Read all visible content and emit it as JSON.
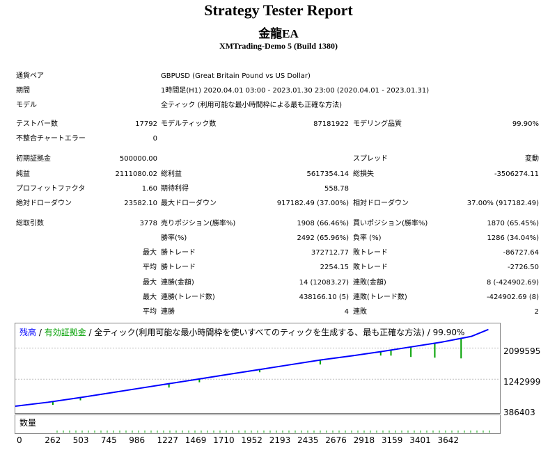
{
  "title": "Strategy Tester Report",
  "ea_name": "金龍EA",
  "server": "XMTrading-Demo 5 (Build 1380)",
  "info": {
    "symbol_label": "通貨ペア",
    "symbol_value": "GBPUSD (Great Britain Pound vs US Dollar)",
    "period_label": "期間",
    "period_value": "1時間足(H1) 2020.04.01 03:00 - 2023.01.30 23:00 (2020.04.01 - 2023.01.31)",
    "model_label": "モデル",
    "model_value": "全ティック (利用可能な最小時間枠による最も正確な方法)"
  },
  "stats": {
    "bars_label": "テストバー数",
    "bars_value": "17792",
    "ticks_label": "モデルティック数",
    "ticks_value": "87181922",
    "quality_label": "モデリング品質",
    "quality_value": "99.90%",
    "mismatch_label": "不整合チャートエラー",
    "mismatch_value": "0",
    "deposit_label": "初期証拠金",
    "deposit_value": "500000.00",
    "spread_label": "スプレッド",
    "spread_value": "変動",
    "net_label": "純益",
    "net_value": "2111080.02",
    "gross_profit_label": "総利益",
    "gross_profit_value": "5617354.14",
    "gross_loss_label": "総損失",
    "gross_loss_value": "-3506274.11",
    "pf_label": "プロフィットファクタ",
    "pf_value": "1.60",
    "expected_label": "期待利得",
    "expected_value": "558.78",
    "abs_dd_label": "絶対ドローダウン",
    "abs_dd_value": "23582.10",
    "max_dd_label": "最大ドローダウン",
    "max_dd_value": "917182.49 (37.00%)",
    "rel_dd_label": "相対ドローダウン",
    "rel_dd_value": "37.00% (917182.49)",
    "total_trades_label": "総取引数",
    "total_trades_value": "3778",
    "short_label": "売りポジション(勝率%)",
    "short_value": "1908 (66.46%)",
    "long_label": "買いポジション(勝率%)",
    "long_value": "1870 (65.45%)",
    "win_pct_label": "勝率(%)",
    "win_pct_value": "2492 (65.96%)",
    "loss_pct_label": "負率 (%)",
    "loss_pct_value": "1286 (34.04%)",
    "max_label": "最大",
    "avg_label": "平均",
    "win_trade_label": "勝トレード",
    "loss_trade_label": "敗トレード",
    "max_win_value": "372712.77",
    "max_loss_value": "-86727.64",
    "avg_win_value": "2254.15",
    "avg_loss_value": "-2726.50",
    "cons_win_amt_label": "連勝(金額)",
    "cons_win_amt_value": "14 (12083.27)",
    "cons_loss_amt_label": "連敗(金額)",
    "cons_loss_amt_value": "8 (-424902.69)",
    "cons_win_tr_label": "連勝(トレード数)",
    "cons_win_tr_value": "438166.10 (5)",
    "cons_loss_tr_label": "連敗(トレード数)",
    "cons_loss_tr_value": "-424902.69 (8)",
    "avg_cons_win_label": "連勝",
    "avg_cons_win_value": "4",
    "avg_cons_loss_label": "連敗",
    "avg_cons_loss_value": "2"
  },
  "graph": {
    "legend_balance": "残高",
    "legend_sep1": " / ",
    "legend_equity": "有効証拠金",
    "legend_rest": " / 全ティック(利用可能な最小時間枠を使いすべてのティックを生成する、最も正確な方法) / 99.90%",
    "volume_label": "数量",
    "y_ticks": [
      "2099595",
      "1242999",
      "386403"
    ],
    "x_ticks": [
      "0",
      "262",
      "503",
      "745",
      "986",
      "1227",
      "1469",
      "1710",
      "1952",
      "2193",
      "2435",
      "2676",
      "2918",
      "3159",
      "3401",
      "3642"
    ],
    "colors": {
      "balance": "#0000ff",
      "equity": "#00a000"
    }
  },
  "chart_data": {
    "type": "line",
    "x": [
      0,
      262,
      503,
      745,
      986,
      1227,
      1469,
      1710,
      1952,
      2193,
      2435,
      2676,
      2918,
      3159,
      3401,
      3642,
      3778
    ],
    "series": [
      {
        "name": "残高",
        "values": [
          500000,
          610000,
          730000,
          860000,
          990000,
          1120000,
          1250000,
          1380000,
          1510000,
          1640000,
          1770000,
          1880000,
          2000000,
          2130000,
          2260000,
          2420000,
          2611080
        ]
      }
    ],
    "ylim": [
      386403,
      2700000
    ],
    "xlim": [
      0,
      3870
    ]
  }
}
